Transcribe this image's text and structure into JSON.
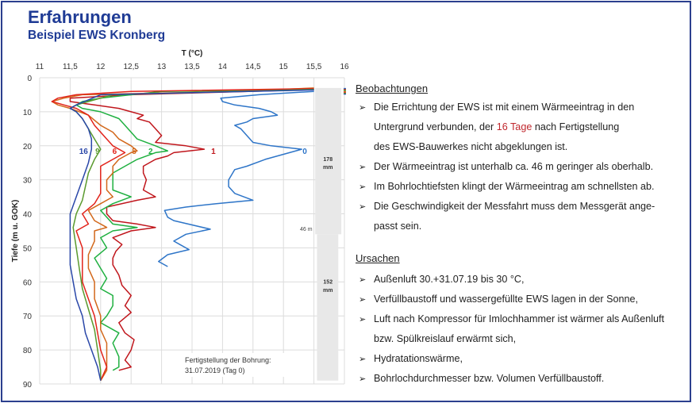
{
  "header": {
    "title": "Erfahrungen",
    "subtitle": "Beispiel EWS Kronberg"
  },
  "chart_data": {
    "type": "line",
    "xlabel": "T (°C)",
    "ylabel": "Tiefe (m u. GOK)",
    "xlim": [
      11,
      16
    ],
    "ylim": [
      0,
      90
    ],
    "y_inverted": true,
    "x_ticks": [
      "11",
      "11,5",
      "12",
      "12,5",
      "13",
      "13,5",
      "14",
      "14,5",
      "15",
      "15,5",
      "16"
    ],
    "y_ticks": [
      "0",
      "10",
      "20",
      "30",
      "40",
      "50",
      "60",
      "70",
      "80",
      "90"
    ],
    "grid": true,
    "series": [
      {
        "name": "0",
        "color": "#2e75c8",
        "points": [
          [
            15.5,
            4
          ],
          [
            14.6,
            5
          ],
          [
            13.97,
            6
          ],
          [
            14.0,
            7
          ],
          [
            14.2,
            8
          ],
          [
            14.6,
            9
          ],
          [
            14.8,
            10
          ],
          [
            14.9,
            11
          ],
          [
            14.5,
            12
          ],
          [
            14.4,
            13
          ],
          [
            14.2,
            14
          ],
          [
            14.3,
            15
          ],
          [
            14.4,
            17
          ],
          [
            14.5,
            19
          ],
          [
            14.8,
            20
          ],
          [
            15.3,
            21
          ],
          [
            15.1,
            22
          ],
          [
            14.7,
            24
          ],
          [
            14.4,
            26
          ],
          [
            14.2,
            27
          ],
          [
            14.1,
            30
          ],
          [
            14.1,
            32
          ],
          [
            14.2,
            34
          ],
          [
            14.5,
            36
          ],
          [
            13.9,
            37
          ],
          [
            13.4,
            38
          ],
          [
            13.05,
            39
          ],
          [
            13.1,
            41
          ],
          [
            13.2,
            42
          ],
          [
            13.8,
            44.5
          ],
          [
            13.4,
            46
          ],
          [
            13.2,
            48
          ],
          [
            13.3,
            49
          ],
          [
            13.45,
            50.5
          ],
          [
            13.1,
            52
          ],
          [
            12.95,
            54
          ],
          [
            13.1,
            55.5
          ]
        ]
      },
      {
        "name": "1",
        "color": "#c0161c",
        "points": [
          [
            15.5,
            3.5
          ],
          [
            12.5,
            5
          ],
          [
            11.5,
            6
          ],
          [
            11.5,
            7
          ],
          [
            11.9,
            8
          ],
          [
            12.3,
            9
          ],
          [
            12.5,
            10
          ],
          [
            12.7,
            11
          ],
          [
            12.6,
            12
          ],
          [
            12.8,
            13
          ],
          [
            12.9,
            15
          ],
          [
            13.0,
            17
          ],
          [
            12.9,
            19
          ],
          [
            13.4,
            20
          ],
          [
            13.7,
            21
          ],
          [
            13.2,
            22
          ],
          [
            13.1,
            23
          ],
          [
            12.9,
            24
          ],
          [
            12.7,
            26
          ],
          [
            12.7,
            28
          ],
          [
            12.75,
            30
          ],
          [
            12.7,
            33
          ],
          [
            12.9,
            35
          ],
          [
            12.6,
            36
          ],
          [
            12.1,
            38
          ],
          [
            12.1,
            40
          ],
          [
            12.2,
            42
          ],
          [
            12.6,
            43
          ],
          [
            12.9,
            44
          ],
          [
            12.5,
            45
          ],
          [
            12.2,
            47
          ],
          [
            12.35,
            49
          ],
          [
            12.25,
            51
          ],
          [
            12.2,
            53
          ],
          [
            12.2,
            55
          ],
          [
            12.3,
            58
          ],
          [
            12.35,
            61
          ],
          [
            12.5,
            64
          ],
          [
            12.4,
            67
          ],
          [
            12.5,
            69
          ],
          [
            12.3,
            72
          ],
          [
            12.4,
            75
          ],
          [
            12.55,
            77
          ],
          [
            12.5,
            80
          ],
          [
            12.4,
            83
          ],
          [
            12.5,
            85
          ],
          [
            12.3,
            86
          ]
        ]
      },
      {
        "name": "2",
        "color": "#1fb040",
        "points": [
          [
            15.5,
            3.5
          ],
          [
            13.0,
            4
          ],
          [
            12.0,
            6
          ],
          [
            11.7,
            7
          ],
          [
            11.6,
            8
          ],
          [
            11.7,
            9
          ],
          [
            12.0,
            10
          ],
          [
            12.3,
            12
          ],
          [
            12.4,
            14
          ],
          [
            12.5,
            16
          ],
          [
            12.6,
            18
          ],
          [
            12.9,
            20
          ],
          [
            13.1,
            21.5
          ],
          [
            12.9,
            22
          ],
          [
            12.6,
            24
          ],
          [
            12.4,
            26
          ],
          [
            12.2,
            28
          ],
          [
            12.2,
            30
          ],
          [
            12.2,
            33
          ],
          [
            12.5,
            35
          ],
          [
            12.2,
            37
          ],
          [
            12.0,
            39
          ],
          [
            12.1,
            41
          ],
          [
            12.2,
            43
          ],
          [
            12.6,
            44
          ],
          [
            12.2,
            45
          ],
          [
            12.0,
            47
          ],
          [
            12.1,
            50
          ],
          [
            11.9,
            53
          ],
          [
            12.0,
            56
          ],
          [
            12.1,
            59
          ],
          [
            12.0,
            62
          ],
          [
            12.2,
            64
          ],
          [
            12.2,
            67
          ],
          [
            12.1,
            70
          ],
          [
            12.0,
            72
          ],
          [
            12.3,
            75
          ],
          [
            12.2,
            78
          ],
          [
            12.3,
            82
          ],
          [
            12.3,
            85
          ],
          [
            12.2,
            86
          ]
        ]
      },
      {
        "name": "5",
        "color": "#d2671a",
        "points": [
          [
            15.5,
            3
          ],
          [
            14.2,
            4
          ],
          [
            11.7,
            5
          ],
          [
            11.4,
            6
          ],
          [
            11.2,
            7
          ],
          [
            11.3,
            8
          ],
          [
            11.5,
            9
          ],
          [
            11.8,
            11
          ],
          [
            12.0,
            14
          ],
          [
            12.2,
            16
          ],
          [
            12.3,
            18
          ],
          [
            12.5,
            20
          ],
          [
            12.6,
            21.5
          ],
          [
            12.5,
            22
          ],
          [
            12.3,
            24
          ],
          [
            12.2,
            26
          ],
          [
            12.2,
            28
          ],
          [
            12.1,
            30
          ],
          [
            12.1,
            33
          ],
          [
            12.2,
            35
          ],
          [
            12.0,
            37
          ],
          [
            11.8,
            39
          ],
          [
            11.9,
            42
          ],
          [
            12.1,
            44
          ],
          [
            11.9,
            45
          ],
          [
            11.9,
            48
          ],
          [
            11.8,
            52
          ],
          [
            11.8,
            56
          ],
          [
            11.9,
            60
          ],
          [
            11.9,
            65
          ],
          [
            12.0,
            70
          ],
          [
            12.0,
            74
          ],
          [
            12.1,
            78
          ],
          [
            12.1,
            82
          ],
          [
            12.1,
            86
          ],
          [
            12.0,
            89
          ]
        ]
      },
      {
        "name": "6",
        "color": "#e2231a",
        "points": [
          [
            15.5,
            3.2
          ],
          [
            12.5,
            4
          ],
          [
            11.6,
            5
          ],
          [
            11.3,
            6
          ],
          [
            11.2,
            7
          ],
          [
            11.4,
            8
          ],
          [
            11.6,
            9
          ],
          [
            11.8,
            11
          ],
          [
            11.9,
            14
          ],
          [
            12.0,
            16
          ],
          [
            12.1,
            18
          ],
          [
            12.2,
            20
          ],
          [
            12.4,
            22
          ],
          [
            12.2,
            24
          ],
          [
            12.0,
            26
          ],
          [
            12.0,
            30
          ],
          [
            12.0,
            34
          ],
          [
            11.9,
            37
          ],
          [
            11.7,
            40
          ],
          [
            11.8,
            43
          ],
          [
            11.6,
            45
          ],
          [
            11.7,
            50
          ],
          [
            11.7,
            55
          ],
          [
            11.7,
            60
          ],
          [
            11.8,
            65
          ],
          [
            11.9,
            70
          ],
          [
            11.95,
            75
          ],
          [
            12.0,
            80
          ],
          [
            12.1,
            85
          ],
          [
            12.0,
            89
          ]
        ]
      },
      {
        "name": "9",
        "color": "#5a9a2e",
        "points": [
          [
            15.5,
            3.4
          ],
          [
            12.2,
            5
          ],
          [
            11.8,
            7
          ],
          [
            11.6,
            8
          ],
          [
            11.5,
            9
          ],
          [
            11.6,
            10
          ],
          [
            11.7,
            12
          ],
          [
            11.8,
            15
          ],
          [
            11.9,
            18
          ],
          [
            12.0,
            21
          ],
          [
            11.9,
            24
          ],
          [
            11.8,
            28
          ],
          [
            11.75,
            32
          ],
          [
            11.7,
            36
          ],
          [
            11.6,
            40
          ],
          [
            11.55,
            44
          ],
          [
            11.6,
            50
          ],
          [
            11.65,
            56
          ],
          [
            11.7,
            62
          ],
          [
            11.8,
            68
          ],
          [
            11.9,
            74
          ],
          [
            11.95,
            80
          ],
          [
            12.0,
            86
          ],
          [
            12.0,
            89
          ]
        ]
      },
      {
        "name": "16",
        "color": "#2a47a8",
        "points": [
          [
            15.5,
            3.6
          ],
          [
            12.0,
            5
          ],
          [
            11.6,
            8
          ],
          [
            11.5,
            9
          ],
          [
            11.6,
            10
          ],
          [
            11.7,
            12
          ],
          [
            11.8,
            15
          ],
          [
            11.85,
            18
          ],
          [
            11.85,
            21
          ],
          [
            11.8,
            25
          ],
          [
            11.7,
            30
          ],
          [
            11.6,
            35
          ],
          [
            11.5,
            40
          ],
          [
            11.5,
            45
          ],
          [
            11.5,
            50
          ],
          [
            11.5,
            55
          ],
          [
            11.55,
            60
          ],
          [
            11.6,
            65
          ],
          [
            11.7,
            70
          ],
          [
            11.75,
            75
          ],
          [
            11.85,
            80
          ],
          [
            11.95,
            85
          ],
          [
            12.0,
            89
          ]
        ]
      }
    ],
    "annotations": {
      "completion": [
        "Fertigstellung der Bohrung:",
        "31.07.2019 (Tag 0)"
      ],
      "diameter_upper": [
        "178",
        "mm"
      ],
      "diameter_lower": [
        "152",
        "mm"
      ],
      "depth_mark": "46 m"
    },
    "borehole_fill": "#e8e8e8"
  },
  "notes": {
    "observations_heading": "Beobachtungen",
    "obs1_a": "Die Errichtung der EWS ist mit einem Wärmeeintrag in den",
    "obs1_b_pre": "Untergrund verbunden, der ",
    "obs1_b_hl": "16 Tage",
    "obs1_b_post": " nach Fertigstellung",
    "obs1_c": "des EWS-Bauwerkes nicht abgeklungen ist.",
    "obs2": "Der Wärmeeintrag ist unterhalb ca. 46 m geringer als oberhalb.",
    "obs3": "Im Bohrlochtiefsten klingt der Wärmeeintrag am schnellsten ab.",
    "obs4_a": "Die Geschwindigkeit der Messfahrt muss dem Messgerät ange-",
    "obs4_b": "passt sein.",
    "causes_heading": "Ursachen",
    "c1": "Außenluft 30.+31.07.19 bis 30 °C,",
    "c2": "Verfüllbaustoff und wassergefüllte EWS lagen in der Sonne,",
    "c3_a": "Luft nach Kompressor für Imlochhammer ist wärmer als Außenluft",
    "c3_b": "bzw. Spülkreislauf erwärmt sich,",
    "c4": "Hydratationswärme,",
    "c5": "Bohrlochdurchmesser bzw. Volumen Verfüllbaustoff.",
    "bullet": "➢",
    "highlight_color": "#c0272d"
  }
}
